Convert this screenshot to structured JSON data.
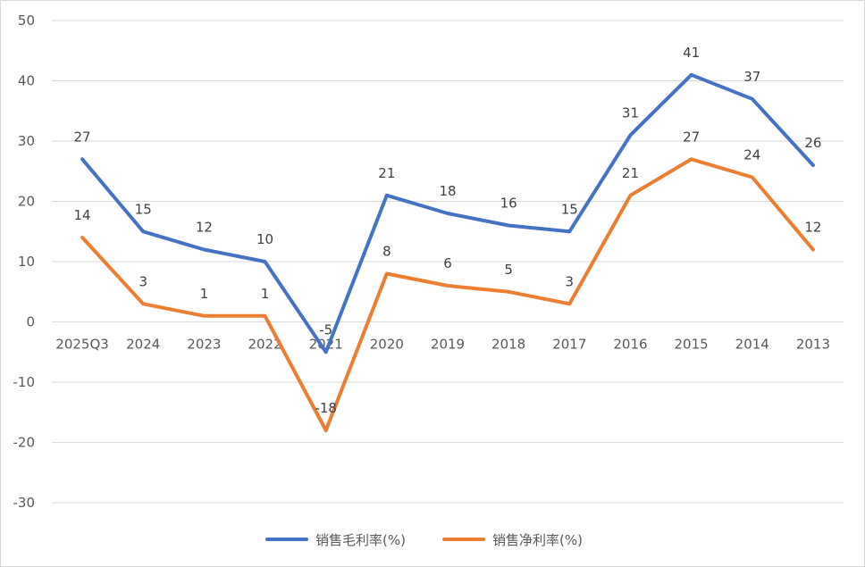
{
  "chart_data": {
    "type": "line",
    "categories": [
      "2025Q3",
      "2024",
      "2023",
      "2022",
      "2021",
      "2020",
      "2019",
      "2018",
      "2017",
      "2016",
      "2015",
      "2014",
      "2013"
    ],
    "series": [
      {
        "name": "销售毛利率(%)",
        "color": "#4472c4",
        "values": [
          27,
          15,
          12,
          10,
          -5,
          21,
          18,
          16,
          15,
          31,
          41,
          37,
          26
        ]
      },
      {
        "name": "销售净利率(%)",
        "color": "#ed7d31",
        "values": [
          14,
          3,
          1,
          1,
          -18,
          8,
          6,
          5,
          3,
          21,
          27,
          24,
          12
        ]
      }
    ],
    "yticks": [
      "50",
      "40",
      "30",
      "20",
      "10",
      "0",
      "-10",
      "-20",
      "-30"
    ],
    "ylim": [
      -30,
      50
    ],
    "grid": true,
    "legend": "bottom-center"
  }
}
